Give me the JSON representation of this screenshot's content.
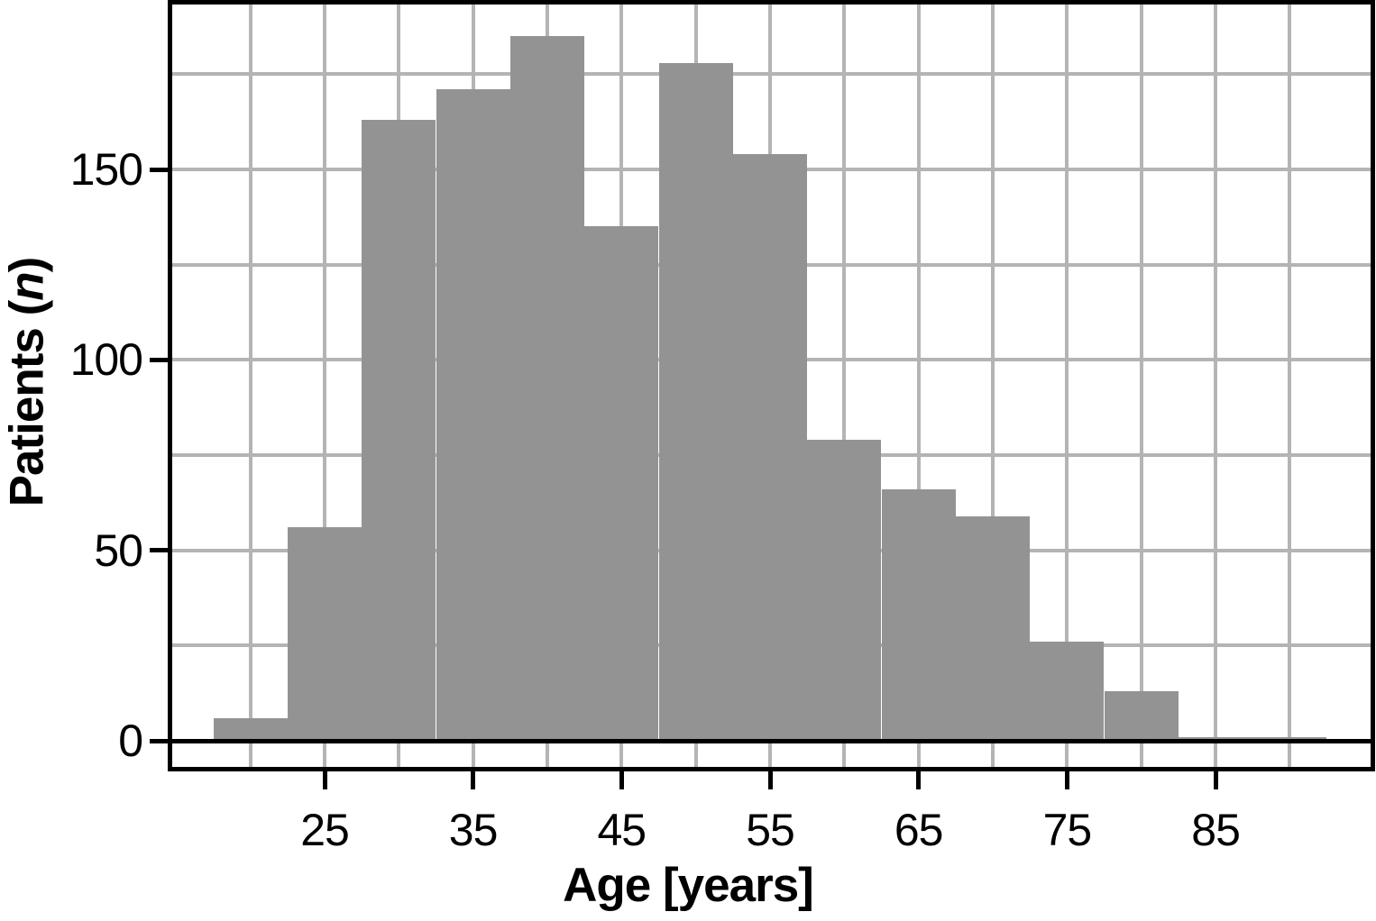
{
  "figure": {
    "ylabel_prefix": "Patients (",
    "ylabel_italic": "n",
    "ylabel_suffix": ")"
  },
  "chart_data": {
    "type": "bar",
    "subtype": "histogram",
    "title": "",
    "xlabel": "Age [years]",
    "ylabel": "Patients (n)",
    "bin_width": 5,
    "bin_centers": [
      20,
      25,
      30,
      35,
      40,
      45,
      50,
      55,
      60,
      65,
      70,
      75,
      80,
      85,
      90
    ],
    "bin_edges": [
      17.5,
      22.5,
      27.5,
      32.5,
      37.5,
      42.5,
      47.5,
      52.5,
      57.5,
      62.5,
      67.5,
      72.5,
      77.5,
      82.5,
      87.5,
      92.5
    ],
    "values": [
      6,
      56,
      163,
      171,
      185,
      135,
      178,
      154,
      79,
      66,
      59,
      26,
      13,
      1,
      1
    ],
    "x_ticks": [
      25,
      35,
      45,
      55,
      65,
      75,
      85
    ],
    "y_ticks": [
      0,
      50,
      100,
      150
    ],
    "x_gridlines": [
      20,
      25,
      30,
      35,
      40,
      45,
      50,
      55,
      60,
      65,
      70,
      75,
      80,
      85,
      90
    ],
    "y_gridlines": [
      25,
      50,
      75,
      100,
      125,
      150,
      175
    ],
    "xlim": [
      14.74,
      95.44
    ],
    "ylim": [
      -6.86,
      193.3
    ],
    "grid": true,
    "legend": null,
    "bar_color": "#939393",
    "grid_color": "#b4b4b4",
    "axis_color": "#000000",
    "background": "#ffffff"
  }
}
